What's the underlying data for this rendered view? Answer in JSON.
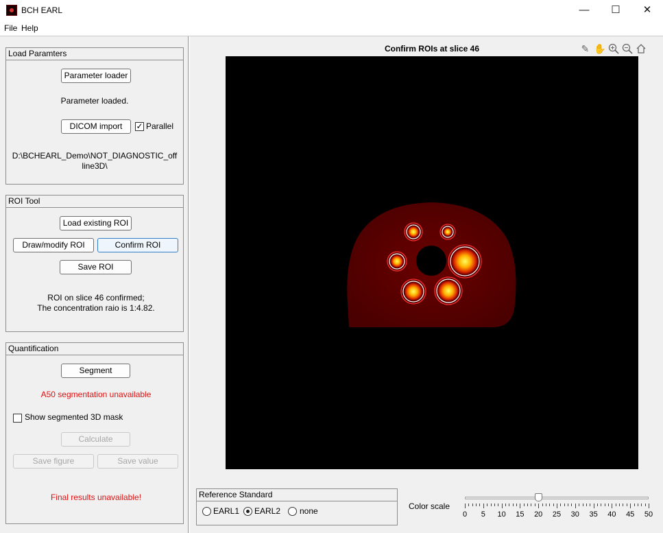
{
  "window": {
    "title": "BCH EARL"
  },
  "menu": {
    "file": "File",
    "help": "Help"
  },
  "load_params": {
    "title": "Load Paramters",
    "param_loader_btn": "Parameter loader",
    "status": "Parameter loaded.",
    "dicom_btn": "DICOM import",
    "parallel_label": "Parallel",
    "parallel_checked": true,
    "path_line1": "D:\\BCHEARL_Demo\\NOT_DIAGNOSTIC_off",
    "path_line2": "line3D\\"
  },
  "roi_tool": {
    "title": "ROI Tool",
    "load_btn": "Load existing ROI",
    "draw_btn": "Draw/modify ROI",
    "confirm_btn": "Confirm ROI",
    "save_btn": "Save ROI",
    "status_line1": "ROI on slice 46 confirmed;",
    "status_line2": "The concentration raio is 1:4.82."
  },
  "quant": {
    "title": "Quantification",
    "segment_btn": "Segment",
    "seg_status": "A50 segmentation unavailable",
    "mask_label": "Show segmented 3D mask",
    "mask_checked": false,
    "calc_btn": "Calculate",
    "save_fig_btn": "Save figure",
    "save_val_btn": "Save value",
    "final_status": "Final results unavailable!"
  },
  "viewer": {
    "title": "Confirm ROIs at slice 46",
    "toolbar": [
      "brush-icon",
      "pan-icon",
      "zoom-in-icon",
      "zoom-out-icon",
      "home-icon"
    ]
  },
  "reference": {
    "title": "Reference Standard",
    "options": [
      "EARL1",
      "EARL2",
      "none"
    ],
    "selected": "EARL2"
  },
  "color_scale": {
    "label": "Color scale",
    "min": 0,
    "max": 50,
    "value": 20,
    "ticks": [
      "0",
      "5",
      "10",
      "15",
      "20",
      "25",
      "30",
      "35",
      "40",
      "45",
      "50"
    ]
  },
  "colors": {
    "accent": "#2f7ec6",
    "error": "#e01010",
    "phantom": "#5a0000"
  }
}
